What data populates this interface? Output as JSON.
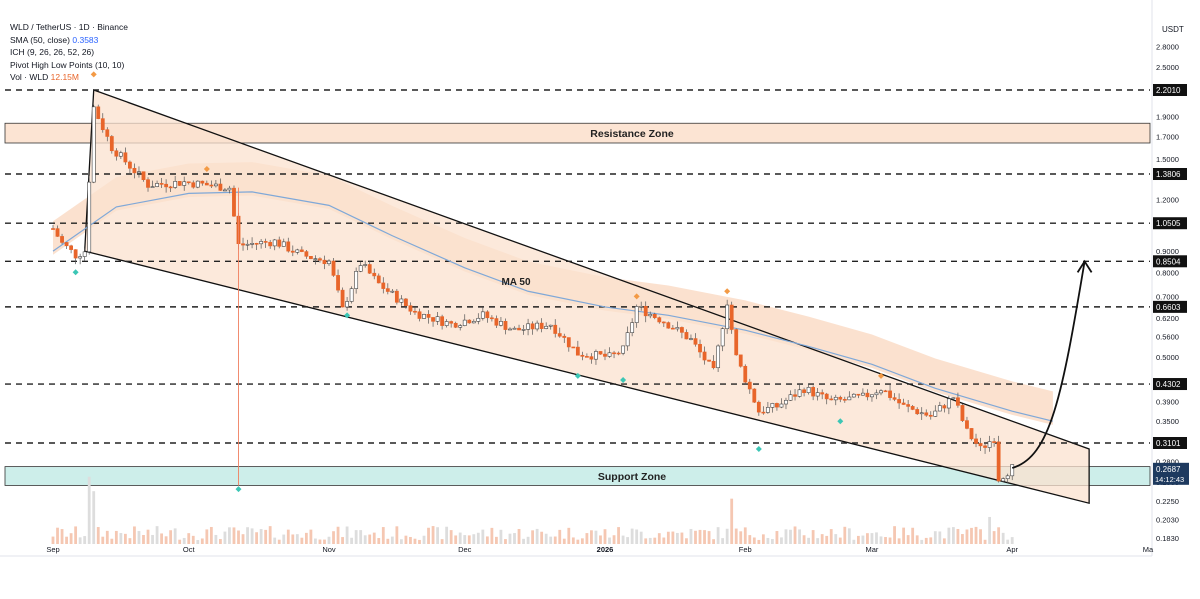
{
  "legend": {
    "title": "WLD / TetherUS · 1D · Binance",
    "sma_label": "SMA (50, close)",
    "sma_value": "0.3583",
    "ich_label": "ICH (9, 26, 26, 52, 26)",
    "pivot_label": "Pivot High Low Points (10, 10)",
    "vol_label": "Vol · WLD",
    "vol_value": "12.15M"
  },
  "currency": "USDT",
  "colors": {
    "up": "#ffffff",
    "down": "#e8652a",
    "wick": "#555555",
    "ma": "#7fa8d8",
    "cloud": "#f7c9a8",
    "channel_fill": "#fbe2cf",
    "resistance_fill": "#fce4d3",
    "support_fill": "#cdeeea",
    "pivot_high": "#f39a45",
    "pivot_low": "#3cc6b5",
    "current_label": "#1e3a5f",
    "marker_line": "#f08060"
  },
  "chart_data": {
    "type": "candlestick",
    "price_axis_ticks": [
      "2.8000",
      "2.5000",
      "2.2010",
      "1.9000",
      "1.7000",
      "1.5000",
      "1.3806",
      "1.2000",
      "1.0505",
      "0.9000",
      "0.8504",
      "0.8000",
      "0.7000",
      "0.6603",
      "0.6200",
      "0.5600",
      "0.5000",
      "0.4302",
      "0.3900",
      "0.3500",
      "0.3101",
      "0.2800",
      "0.2687",
      "0.2500",
      "0.2250",
      "0.2030",
      "0.1830"
    ],
    "time_axis_labels": [
      "Sep",
      "Oct",
      "Nov",
      "Dec",
      "2026",
      "Feb",
      "Mar",
      "Apr",
      "Ma"
    ],
    "key_levels": [
      {
        "label": "2.2010",
        "value": 2.201
      },
      {
        "label": "1.3806",
        "value": 1.3806
      },
      {
        "label": "1.0505",
        "value": 1.0505
      },
      {
        "label": "0.8504",
        "value": 0.8504
      },
      {
        "label": "0.6603",
        "value": 0.6603
      },
      {
        "label": "0.4302",
        "value": 0.4302
      },
      {
        "label": "0.3101",
        "value": 0.3101
      }
    ],
    "current_price": {
      "value": "0.2687",
      "countdown": "14:12:43"
    },
    "zones": [
      {
        "name": "Resistance Zone",
        "low": 1.64,
        "high": 1.83
      },
      {
        "name": "Support Zone",
        "low": 0.245,
        "high": 0.272
      }
    ],
    "ma_label": "MA 50",
    "channel": {
      "upper": [
        [
          "Sep 10",
          2.201
        ],
        [
          "Apr 18",
          0.3
        ]
      ],
      "lower": [
        [
          "Sep 8",
          0.9
        ],
        [
          "Apr 18",
          0.222
        ]
      ]
    },
    "price_path": [
      [
        "Sep 1",
        1.02
      ],
      [
        "Sep 3",
        0.94
      ],
      [
        "Sep 6",
        0.88
      ],
      [
        "Sep 8",
        0.9
      ],
      [
        "Sep 10",
        2.0
      ],
      [
        "Sep 14",
        1.6
      ],
      [
        "Sep 22",
        1.3
      ],
      [
        "Sep 30",
        1.32
      ],
      [
        "Oct 5",
        1.3
      ],
      [
        "Oct 10",
        1.28
      ],
      [
        "Oct 12",
        0.93
      ],
      [
        "Oct 20",
        0.95
      ],
      [
        "Oct 26",
        0.88
      ],
      [
        "Nov 1",
        0.85
      ],
      [
        "Nov 4",
        0.65
      ],
      [
        "Nov 8",
        0.84
      ],
      [
        "Nov 12",
        0.75
      ],
      [
        "Nov 20",
        0.64
      ],
      [
        "Nov 28",
        0.6
      ],
      [
        "Dec 5",
        0.63
      ],
      [
        "Dec 12",
        0.58
      ],
      [
        "Dec 20",
        0.6
      ],
      [
        "Dec 26",
        0.51
      ],
      [
        "Jan 2",
        0.5
      ],
      [
        "Jan 5",
        0.52
      ],
      [
        "Jan 8",
        0.66
      ],
      [
        "Jan 14",
        0.61
      ],
      [
        "Jan 20",
        0.55
      ],
      [
        "Jan 25",
        0.46
      ],
      [
        "Jan 28",
        0.68
      ],
      [
        "Jan 30",
        0.5
      ],
      [
        "Feb 4",
        0.37
      ],
      [
        "Feb 8",
        0.38
      ],
      [
        "Feb 14",
        0.42
      ],
      [
        "Feb 20",
        0.39
      ],
      [
        "Feb 27",
        0.4
      ],
      [
        "Mar 3",
        0.42
      ],
      [
        "Mar 8",
        0.38
      ],
      [
        "Mar 14",
        0.36
      ],
      [
        "Mar 19",
        0.4
      ],
      [
        "Mar 22",
        0.33
      ],
      [
        "Mar 25",
        0.3
      ],
      [
        "Mar 28",
        0.32
      ],
      [
        "Mar 29",
        0.255
      ],
      [
        "Apr 1",
        0.27
      ]
    ],
    "ma50": [
      [
        "Sep 1",
        0.9
      ],
      [
        "Sep 15",
        1.15
      ],
      [
        "Oct 1",
        1.24
      ],
      [
        "Oct 15",
        1.25
      ],
      [
        "Nov 1",
        1.16
      ],
      [
        "Nov 15",
        0.98
      ],
      [
        "Dec 1",
        0.82
      ],
      [
        "Dec 15",
        0.72
      ],
      [
        "Jan 1",
        0.66
      ],
      [
        "Jan 15",
        0.63
      ],
      [
        "Feb 1",
        0.58
      ],
      [
        "Feb 15",
        0.53
      ],
      [
        "Mar 1",
        0.48
      ],
      [
        "Mar 15",
        0.42
      ],
      [
        "Apr 1",
        0.37
      ],
      [
        "Apr 10",
        0.35
      ]
    ],
    "projection": [
      [
        "Apr 1",
        0.27
      ],
      [
        "Apr 5",
        0.3
      ],
      [
        "Apr 12",
        0.5
      ],
      [
        "Apr 17",
        0.85
      ]
    ],
    "pivot_highs": [
      [
        "Sep 10",
        2.4
      ],
      [
        "Oct 5",
        1.42
      ],
      [
        "Jan 8",
        0.7
      ],
      [
        "Jan 28",
        0.72
      ],
      [
        "Mar 3",
        0.45
      ]
    ],
    "pivot_lows": [
      [
        "Sep 6",
        0.8
      ],
      [
        "Oct 12",
        0.24
      ],
      [
        "Nov 5",
        0.63
      ],
      [
        "Dec 26",
        0.45
      ],
      [
        "Jan 5",
        0.44
      ],
      [
        "Feb 4",
        0.3
      ],
      [
        "Feb 22",
        0.35
      ]
    ]
  }
}
